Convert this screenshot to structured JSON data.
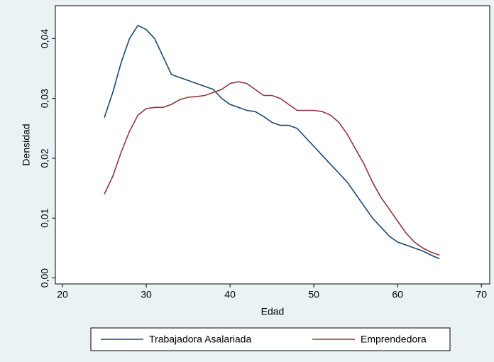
{
  "chart_data": {
    "type": "line",
    "x_label": "Edad",
    "y_label": "Densidad",
    "x": [
      25,
      26,
      27,
      28,
      29,
      30,
      31,
      32,
      33,
      34,
      35,
      36,
      37,
      38,
      39,
      40,
      41,
      42,
      43,
      44,
      45,
      46,
      47,
      48,
      49,
      50,
      51,
      52,
      53,
      54,
      55,
      56,
      57,
      58,
      59,
      60,
      61,
      62,
      63,
      64,
      65
    ],
    "series": [
      {
        "name": "Trabajadora Asalariada",
        "color": "#1a476f",
        "values": [
          0.0268,
          0.031,
          0.036,
          0.04,
          0.0422,
          0.0415,
          0.04,
          0.037,
          0.034,
          0.0335,
          0.033,
          0.0325,
          0.032,
          0.0315,
          0.03,
          0.029,
          0.0285,
          0.028,
          0.0278,
          0.027,
          0.026,
          0.0255,
          0.0255,
          0.025,
          0.0235,
          0.022,
          0.0205,
          0.019,
          0.0175,
          0.016,
          0.014,
          0.012,
          0.01,
          0.0085,
          0.007,
          0.006,
          0.0055,
          0.005,
          0.0045,
          0.0038,
          0.0032
        ]
      },
      {
        "name": "Emprendedora",
        "color": "#90353b",
        "values": [
          0.014,
          0.017,
          0.021,
          0.0245,
          0.0272,
          0.0283,
          0.0285,
          0.0285,
          0.029,
          0.0298,
          0.0302,
          0.0303,
          0.0305,
          0.031,
          0.0315,
          0.0325,
          0.0328,
          0.0325,
          0.0315,
          0.0305,
          0.0305,
          0.03,
          0.029,
          0.028,
          0.028,
          0.028,
          0.0278,
          0.0272,
          0.026,
          0.024,
          0.0215,
          0.019,
          0.016,
          0.0135,
          0.0115,
          0.0095,
          0.0075,
          0.006,
          0.005,
          0.0043,
          0.0038
        ]
      }
    ],
    "xlim": [
      19.15,
      71
    ],
    "xticks": [
      20,
      30,
      40,
      50,
      60,
      70
    ],
    "ylim": [
      -0.001,
      0.0455
    ],
    "yticks": [
      {
        "value": 0,
        "label": "0,00"
      },
      {
        "value": 0.01,
        "label": "0,01"
      },
      {
        "value": 0.02,
        "label": "0,02"
      },
      {
        "value": 0.03,
        "label": "0,03"
      },
      {
        "value": 0.04,
        "label": "0,04"
      }
    ],
    "legend_position": "bottom"
  }
}
